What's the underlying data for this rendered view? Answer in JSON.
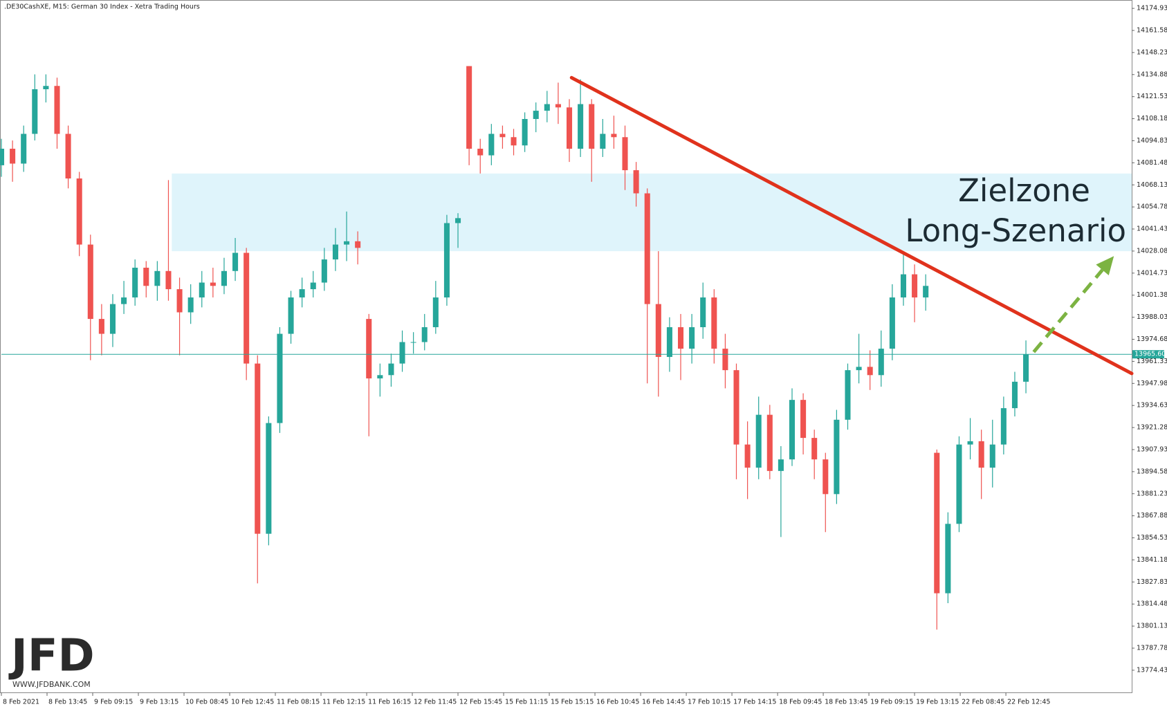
{
  "chart_data": {
    "type": "candlestick",
    "title": ".DE30CashXE, M15:  German 30 Index  - Xetra Trading Hours",
    "up_color": "#26a69a",
    "down_color": "#ef5350",
    "ylim": [
      13761,
      14180
    ],
    "xlim": [
      0,
      101.5
    ],
    "yticks": [
      14174.93,
      14161.58,
      14148.23,
      14134.88,
      14121.53,
      14108.18,
      14094.83,
      14081.48,
      14068.13,
      14054.78,
      14041.43,
      14028.08,
      14014.73,
      14001.38,
      13988.03,
      13974.68,
      13961.33,
      13947.98,
      13934.63,
      13921.28,
      13907.93,
      13894.58,
      13881.23,
      13867.88,
      13854.53,
      13841.18,
      13827.83,
      13814.48,
      13801.13,
      13787.78,
      13774.43
    ],
    "xticks": [
      {
        "value": 0,
        "label": "8 Feb 2021"
      },
      {
        "value": 4.1,
        "label": "8 Feb 13:45"
      },
      {
        "value": 8.2,
        "label": "9 Feb 09:15"
      },
      {
        "value": 12.3,
        "label": "9 Feb 13:15"
      },
      {
        "value": 16.4,
        "label": "10 Feb 08:45"
      },
      {
        "value": 20.5,
        "label": "10 Feb 12:45"
      },
      {
        "value": 24.6,
        "label": "11 Feb 08:15"
      },
      {
        "value": 28.7,
        "label": "11 Feb 12:15"
      },
      {
        "value": 32.8,
        "label": "11 Feb 16:15"
      },
      {
        "value": 36.9,
        "label": "12 Feb 11:45"
      },
      {
        "value": 41,
        "label": "12 Feb 15:45"
      },
      {
        "value": 45.1,
        "label": "15 Feb 11:15"
      },
      {
        "value": 49.2,
        "label": "15 Feb 15:15"
      },
      {
        "value": 53.3,
        "label": "16 Feb 10:45"
      },
      {
        "value": 57.4,
        "label": "16 Feb 14:45"
      },
      {
        "value": 61.5,
        "label": "17 Feb 10:15"
      },
      {
        "value": 65.6,
        "label": "17 Feb 14:15"
      },
      {
        "value": 69.7,
        "label": "18 Feb 09:45"
      },
      {
        "value": 73.8,
        "label": "18 Feb 13:45"
      },
      {
        "value": 77.9,
        "label": "19 Feb 09:15"
      },
      {
        "value": 82,
        "label": "19 Feb 13:15"
      },
      {
        "value": 86.1,
        "label": "22 Feb 08:45"
      },
      {
        "value": 90.2,
        "label": "22 Feb 12:45"
      }
    ],
    "open": [
      14080,
      14090,
      14081,
      14099,
      14126,
      14128,
      14099,
      14072,
      14032,
      13987,
      13978,
      13996,
      14000,
      14018,
      14007,
      14016,
      14005,
      13991,
      14000,
      14009,
      14007,
      14016,
      14027,
      13960,
      13857,
      13924,
      13978,
      14000,
      14005,
      14009,
      14023,
      14032,
      14034,
      13987,
      13951,
      13953,
      13960,
      13973,
      13973,
      13982,
      14000,
      14045,
      14140,
      14090,
      14086,
      14099,
      14097,
      14092,
      14108,
      14113,
      14117,
      14115,
      14090,
      14117,
      14090,
      14099,
      14097,
      14077,
      14063,
      13996,
      13964,
      13982,
      13969,
      13982,
      14000,
      13969,
      13956,
      13911,
      13897,
      13929,
      13895,
      13902,
      13938,
      13915,
      13902,
      13881,
      13926,
      13956,
      13958,
      13953,
      13969,
      14000,
      14014,
      14000,
      13906,
      13821,
      13863,
      13911,
      13913,
      13897,
      13911,
      13933,
      13949
    ],
    "high": [
      14096,
      14095,
      14104,
      14135,
      14135,
      14133,
      14104,
      14076,
      14038,
      13996,
      14002,
      14010,
      14023,
      14022,
      14022,
      14071,
      14012,
      14008,
      14016,
      14018,
      14024,
      14036,
      14030,
      13965,
      13928,
      13982,
      14004,
      14012,
      14016,
      14030,
      14042,
      14052,
      14040,
      13990,
      13960,
      13966,
      13980,
      13979,
      13990,
      14010,
      14050,
      14051,
      14140,
      14096,
      14105,
      14104,
      14102,
      14112,
      14118,
      14125,
      14130,
      14120,
      14132,
      14120,
      14108,
      14110,
      14104,
      14082,
      14066,
      14028,
      13988,
      13990,
      13990,
      14009,
      14005,
      13978,
      13960,
      13925,
      13940,
      13935,
      13910,
      13945,
      13942,
      13920,
      13906,
      13932,
      13960,
      13978,
      13968,
      13980,
      14008,
      14027,
      14020,
      14014,
      13908,
      13870,
      13916,
      13927,
      13920,
      13926,
      13940,
      13955,
      13974
    ],
    "low": [
      14073,
      14070,
      14076,
      14095,
      14118,
      14090,
      14066,
      14025,
      13962,
      13965,
      13970,
      13990,
      13995,
      14000,
      13998,
      13998,
      13965,
      13984,
      13994,
      14000,
      14002,
      14010,
      13950,
      13827,
      13850,
      13918,
      13972,
      13994,
      14000,
      14004,
      14016,
      14022,
      14020,
      13916,
      13940,
      13946,
      13955,
      13966,
      13968,
      13978,
      13995,
      14030,
      14080,
      14075,
      14080,
      14090,
      14086,
      14088,
      14100,
      14106,
      14105,
      14082,
      14085,
      14070,
      14085,
      14090,
      14065,
      14055,
      13948,
      13940,
      13955,
      13950,
      13960,
      13975,
      13960,
      13945,
      13890,
      13878,
      13890,
      13890,
      13855,
      13898,
      13905,
      13890,
      13858,
      13875,
      13920,
      13948,
      13944,
      13946,
      13962,
      13995,
      13985,
      13992,
      13799,
      13815,
      13858,
      13902,
      13878,
      13885,
      13905,
      13928,
      13942
    ],
    "close": [
      14090,
      14081,
      14099,
      14126,
      14128,
      14099,
      14072,
      14032,
      13987,
      13978,
      13996,
      14000,
      14018,
      14007,
      14016,
      14005,
      13991,
      14000,
      14009,
      14007,
      14016,
      14027,
      13960,
      13857,
      13924,
      13978,
      14000,
      14005,
      14009,
      14023,
      14032,
      14034,
      14030,
      13951,
      13953,
      13960,
      13973,
      13973,
      13982,
      14000,
      14045,
      14048,
      14090,
      14086,
      14099,
      14097,
      14092,
      14108,
      14113,
      14117,
      14115,
      14090,
      14117,
      14090,
      14099,
      14097,
      14077,
      14063,
      13996,
      13964,
      13982,
      13969,
      13982,
      14000,
      13969,
      13956,
      13911,
      13897,
      13929,
      13895,
      13902,
      13938,
      13915,
      13902,
      13881,
      13926,
      13956,
      13958,
      13953,
      13969,
      14000,
      14014,
      14000,
      14007,
      13821,
      13863,
      13911,
      13913,
      13897,
      13911,
      13933,
      13949,
      13965.6
    ],
    "current_price": {
      "value": 13965.6,
      "label": "13965.60"
    },
    "target_zone": {
      "low": 14028,
      "high": 14075,
      "start": 15.3,
      "text": [
        "Zielzone",
        "Long-Szenario"
      ]
    },
    "trendline": {
      "x": [
        51.2,
        101.5
      ],
      "y": [
        14133,
        13954
      ],
      "color": "#e0321c"
    },
    "arrow": {
      "x": [
        92.7,
        99.9
      ],
      "y": [
        13967,
        14025
      ],
      "color": "#7cb342"
    },
    "logo": {
      "name": "JFD",
      "url": "WWW.JFDBANK.COM"
    }
  }
}
